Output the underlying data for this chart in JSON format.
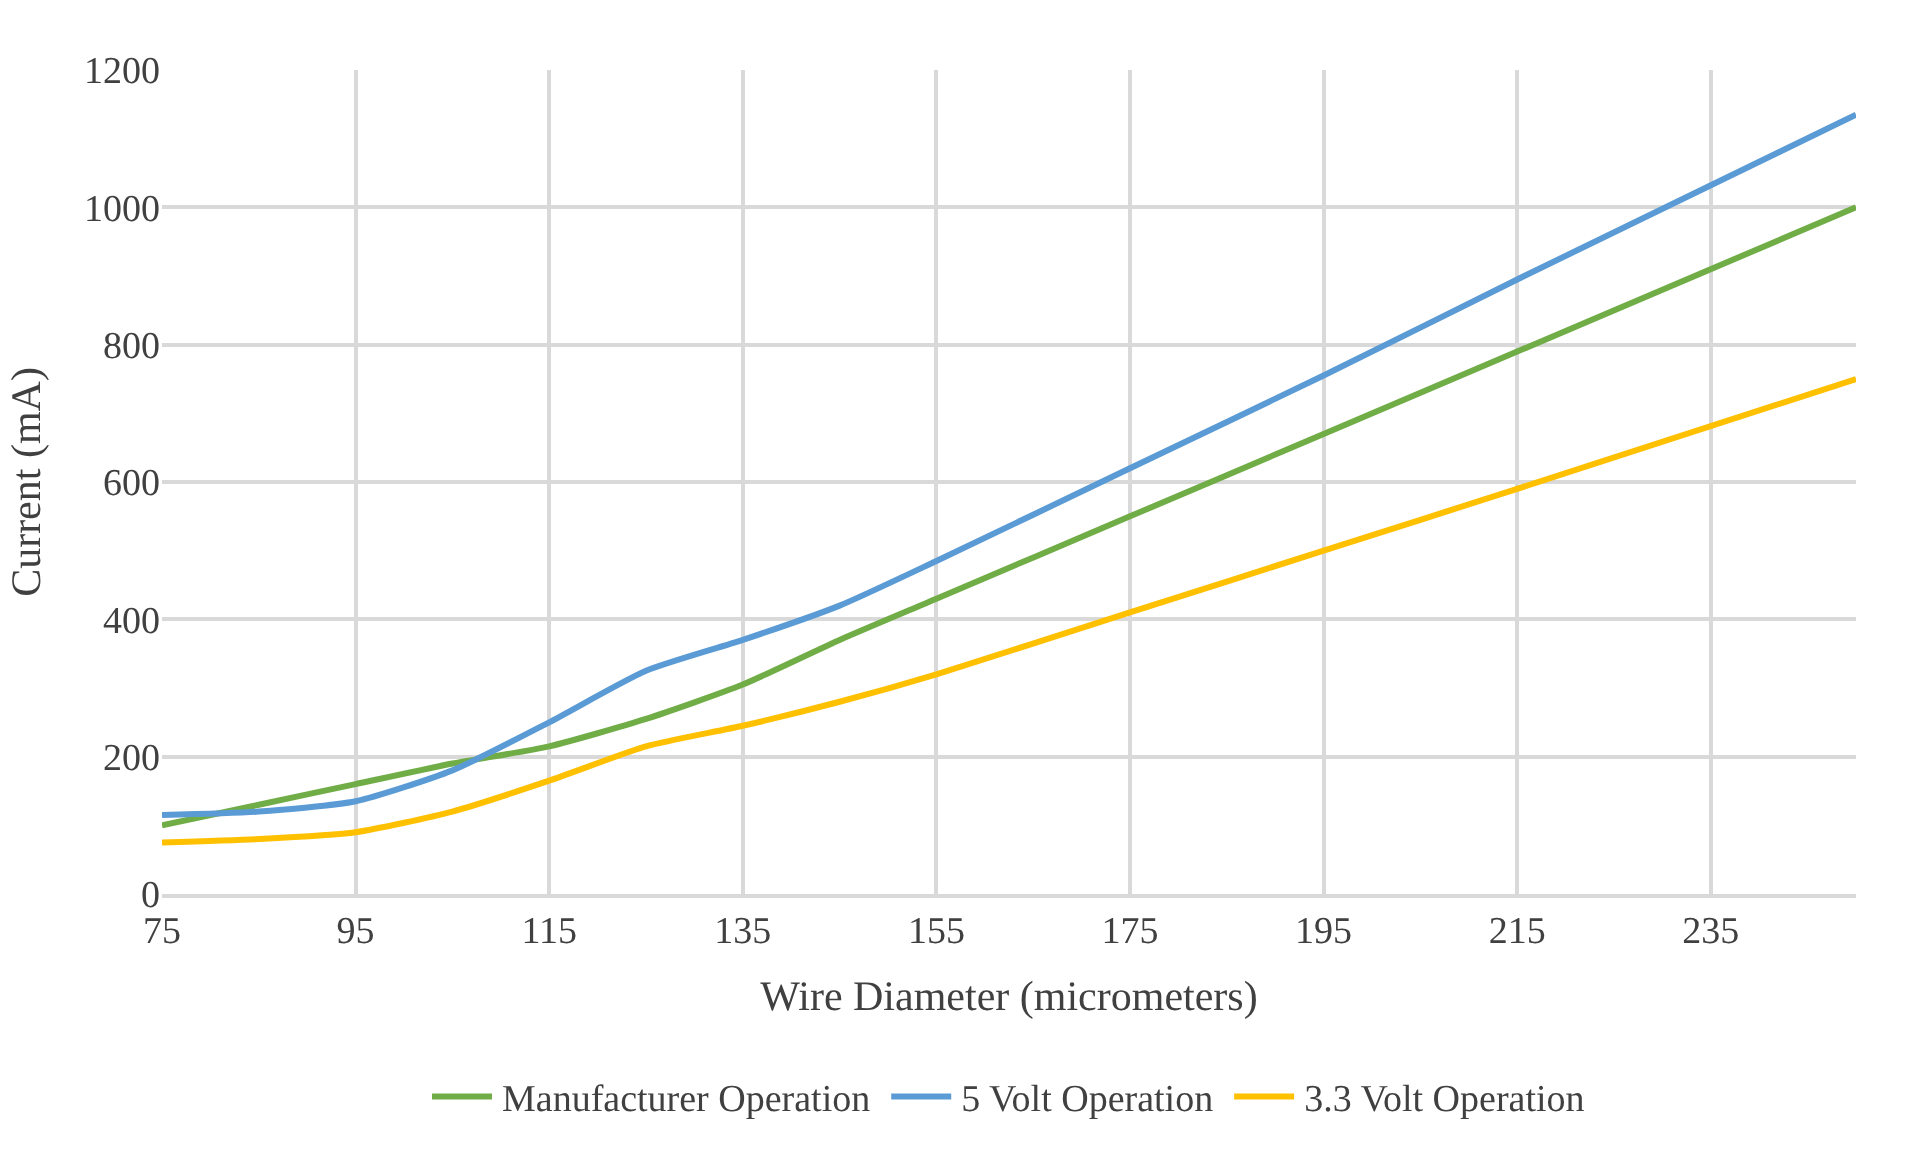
{
  "chart_data": {
    "type": "line",
    "xlabel": "Wire Diameter (micrometers)",
    "ylabel": "Current (mA)",
    "xlim": [
      75,
      250
    ],
    "xticks": [
      75,
      95,
      115,
      135,
      155,
      175,
      195,
      215,
      235
    ],
    "ylim": [
      0,
      1200
    ],
    "yticks": [
      0,
      200,
      400,
      600,
      800,
      1000,
      1200
    ],
    "grid": true,
    "legend": "bottom",
    "marker": "none",
    "line_style": "solid",
    "x": [
      75,
      85,
      95,
      105,
      115,
      125,
      135,
      145,
      155,
      175,
      195,
      215,
      250
    ],
    "series": [
      {
        "name": "Manufacturer Operation",
        "color": "#70ad47",
        "values": [
          100,
          130,
          160,
          190,
          215,
          255,
          305,
          370,
          430,
          550,
          670,
          790,
          1000
        ]
      },
      {
        "name": "5 Volt Operation",
        "color": "#5b9bd5",
        "values": [
          115,
          120,
          135,
          180,
          250,
          325,
          370,
          420,
          485,
          620,
          755,
          895,
          1135
        ]
      },
      {
        "name": "3.3 Volt Operation",
        "color": "#ffc000",
        "values": [
          75,
          80,
          90,
          120,
          165,
          215,
          245,
          280,
          320,
          410,
          500,
          590,
          750
        ]
      }
    ]
  }
}
